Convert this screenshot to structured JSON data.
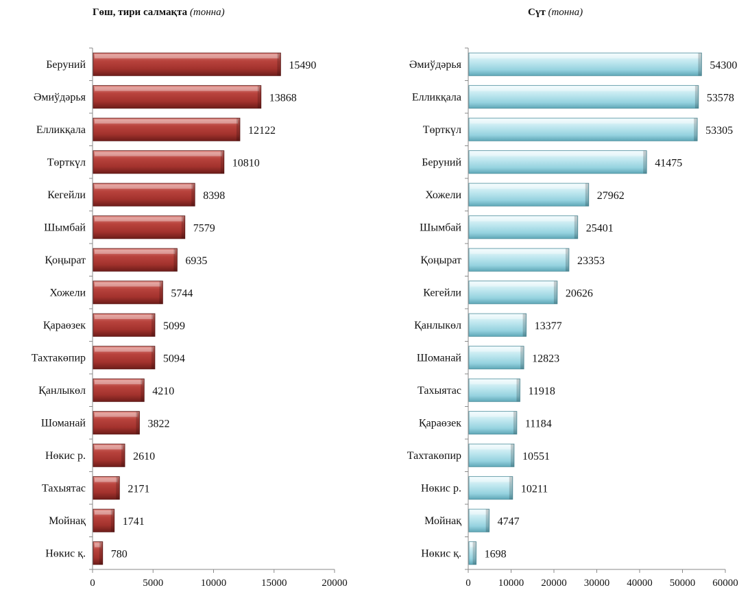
{
  "chart_data": [
    {
      "type": "bar",
      "orientation": "horizontal",
      "title": "Гөш, тири салмақта",
      "unit": "(тонна)",
      "categories": [
        "Беруний",
        "Әмиўдәрья",
        "Елликқала",
        "Төрткүл",
        "Кегейли",
        "Шымбай",
        "Қоңырат",
        "Хожели",
        "Қараөзек",
        "Тахтакөпир",
        "Қанлыкөл",
        "Шоманай",
        "Нөкис р.",
        "Тахыятас",
        "Мойнақ",
        "Нөкис қ."
      ],
      "values": [
        15490,
        13868,
        12122,
        10810,
        8398,
        7579,
        6935,
        5744,
        5099,
        5094,
        4210,
        3822,
        2610,
        2171,
        1741,
        780
      ],
      "xlim": [
        0,
        20000
      ],
      "xticks": [
        "0",
        "5000",
        "10000",
        "15000",
        "20000"
      ],
      "grid": false,
      "color": "#a93a35"
    },
    {
      "type": "bar",
      "orientation": "horizontal",
      "title": "Сүт",
      "unit": "(тонна)",
      "categories": [
        "Әмиўдәрья",
        "Елликқала",
        "Төрткүл",
        "Беруний",
        "Хожели",
        "Шымбай",
        "Қоңырат",
        "Кегейли",
        "Қанлыкөл",
        "Шоманай",
        "Тахыятас",
        "Қараөзек",
        "Тахтакөпир",
        "Нөкис р.",
        "Мойнақ",
        "Нөкис қ."
      ],
      "values": [
        54300,
        53578,
        53305,
        41475,
        27962,
        25401,
        23353,
        20626,
        13377,
        12823,
        11918,
        11184,
        10551,
        10211,
        4747,
        1698
      ],
      "xlim": [
        0,
        60000
      ],
      "xticks": [
        "0",
        "10000",
        "20000",
        "30000",
        "40000",
        "50000",
        "60000"
      ],
      "grid": false,
      "color": "#a8dde8"
    }
  ]
}
